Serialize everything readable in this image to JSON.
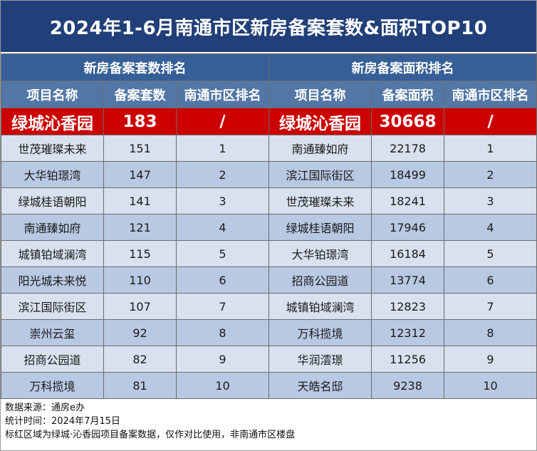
{
  "title": "2024年1-6月南通市区新房备案套数&面积TOP10",
  "left": {
    "section": "新房备案套数排名",
    "headers": [
      "项目名称",
      "备案套数",
      "南通市区排名"
    ],
    "highlight": [
      "绿城沁香园",
      "183",
      "/"
    ],
    "rows": [
      [
        "世茂璀璨未来",
        "151",
        "1"
      ],
      [
        "大华铂璟湾",
        "147",
        "2"
      ],
      [
        "绿城桂语朝阳",
        "141",
        "3"
      ],
      [
        "南通臻如府",
        "121",
        "4"
      ],
      [
        "城镇铂域澜湾",
        "115",
        "5"
      ],
      [
        "阳光城未来悦",
        "110",
        "6"
      ],
      [
        "滨江国际街区",
        "107",
        "7"
      ],
      [
        "崇州云玺",
        "92",
        "8"
      ],
      [
        "招商公园道",
        "82",
        "9"
      ],
      [
        "万科揽境",
        "81",
        "10"
      ]
    ]
  },
  "right": {
    "section": "新房备案面积排名",
    "headers": [
      "项目名称",
      "备案面积",
      "南通市区排名"
    ],
    "highlight": [
      "绿城沁香园",
      "30668",
      "/"
    ],
    "rows": [
      [
        "南通臻如府",
        "22178",
        "1"
      ],
      [
        "滨江国际街区",
        "18499",
        "2"
      ],
      [
        "世茂璀璨未来",
        "18241",
        "3"
      ],
      [
        "绿城桂语朝阳",
        "17946",
        "4"
      ],
      [
        "大华铂璟湾",
        "16184",
        "5"
      ],
      [
        "招商公园道",
        "13774",
        "6"
      ],
      [
        "城镇铂域澜湾",
        "12823",
        "7"
      ],
      [
        "万科揽境",
        "12312",
        "8"
      ],
      [
        "华润澐璟",
        "11256",
        "9"
      ],
      [
        "天皓名邸",
        "9238",
        "10"
      ]
    ]
  },
  "footer": {
    "source": "数据来源：通房e办",
    "date": "统计时间：2024年7月15日",
    "note": "标红区域为绿城·沁香园项目备案数据，仅作对比使用，非南通市区楼盘"
  },
  "colors": {
    "title_bg": "#213f78",
    "section_bg": "#365f97",
    "header_bg": "#5277a6",
    "highlight_bg": "#cc0000",
    "row_light": "#d9e1ee",
    "row_dark": "#b9c9e3"
  }
}
